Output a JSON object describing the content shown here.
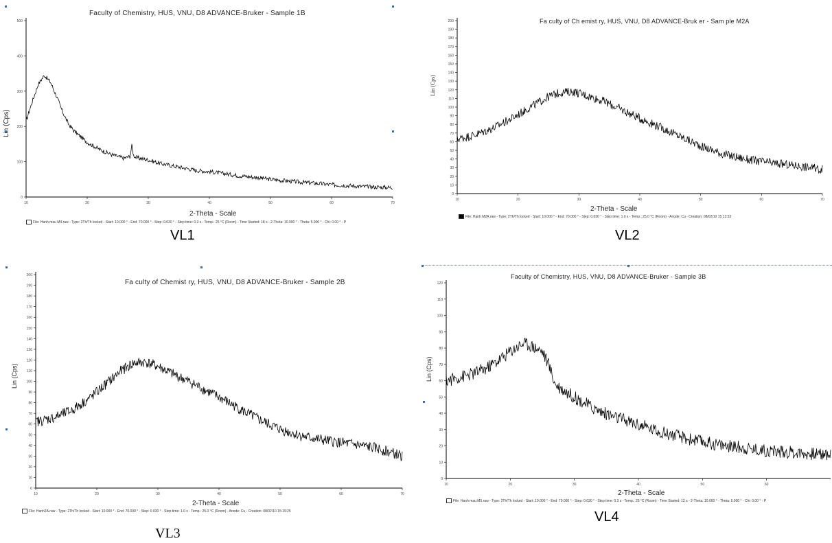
{
  "charts": [
    {
      "caption": "VL1",
      "title": "Faculty of Chemistry, HUS, VNU, D8 ADVANCE-Bruker - Sample  1B",
      "ylabel": "Lin (Cps)",
      "xlabel": "2-Theta - Scale",
      "footer": "File: Hanh mau M4.raw - Type: 2Th/Th locked - Start: 10.000 ° - End: 70.000 ° - Step: 0.030 ° - Step time: 0.3 s - Temp.: 25 °C (Room) - Time Started: 18 s - 2-Theta: 10.000 ° - Theta: 5.000 ° - Chi: 0.00 ° - P"
    },
    {
      "caption": "VL2",
      "title": "Fa culty of Ch emist ry, HUS, VNU, D8 ADVANCE-Bruk er - Sam ple M2A",
      "ylabel": "Lin (Cps)",
      "xlabel": "2-Theta - Scale",
      "footer": "File: Hanh M2A.raw - Type: 2Th/Th locked - Start: 10.000 ° - End: 70.000 ° - Step: 0.030 ° - Step time: 1.0 s - Temp.: 25.0 °C (Room) - Anode: Cu - Creation: 08/02/10 15:13:53"
    },
    {
      "caption": "VL3",
      "title": "Fa culty of Chemist ry, HUS, VNU, D8 ADVANCE-Bruker - Sample  2B",
      "ylabel": "Lin (Cps)",
      "xlabel": "2-Theta - Scale",
      "footer": "File: Hanh2A.raw - Type: 2Th/Th locked - Start: 10.000 ° - End: 70.000 ° - Step: 0.030 ° - Step time: 1.0 s - Temp.: 25.0 °C (Room) - Anode: Cu - Creation: 08/02/10 15:19:25"
    },
    {
      "caption": "VL4",
      "title": "Faculty of Chemistry, HUS, VNU, D8 ADVANCE-Bruker - Sample  3B",
      "ylabel": "Lin (Cps)",
      "xlabel": "2-Theta - Scale",
      "footer": "File: Hanh mau M5.raw - Type: 2Th/Th locked - Start: 10.000 ° - End: 70.000 ° - Step: 0.030 ° - Step time: 0.3 s - Temp.: 25 °C (Room) - Time Started: 12 s - 2-Theta: 10.000 ° - Theta: 5.000 ° - Chi: 0.00 ° - P"
    }
  ],
  "chart_data": [
    {
      "type": "line",
      "title": "Faculty of Chemistry, HUS, VNU, D8 ADVANCE-Bruker - Sample  1B",
      "xlabel": "2-Theta - Scale",
      "ylabel": "Lin (Cps)",
      "xlim": [
        10,
        70
      ],
      "ylim": [
        0,
        500
      ],
      "xticks": [
        10,
        20,
        30,
        40,
        50,
        60,
        70
      ],
      "yticks": [
        0,
        100,
        200,
        300,
        400,
        500
      ],
      "noise": 6,
      "color": "#000000",
      "x": [
        10,
        11,
        12,
        13,
        14,
        15,
        16,
        17,
        18,
        19,
        20,
        22,
        24,
        26,
        27,
        27.3,
        27.6,
        28,
        30,
        32,
        35,
        38,
        40,
        43,
        45,
        48,
        50,
        53,
        55,
        58,
        60,
        63,
        65,
        68,
        70
      ],
      "y": [
        215,
        270,
        320,
        345,
        325,
        285,
        240,
        205,
        185,
        170,
        155,
        135,
        120,
        110,
        115,
        145,
        118,
        112,
        105,
        95,
        85,
        75,
        72,
        65,
        60,
        55,
        50,
        45,
        42,
        38,
        35,
        32,
        30,
        28,
        27
      ]
    },
    {
      "type": "line",
      "title": "Fa culty of Ch emist ry, HUS, VNU, D8 ADVANCE-Bruk er - Sam ple M2A",
      "xlabel": "2-Theta - Scale",
      "ylabel": "Lin (Cps)",
      "xlim": [
        10,
        70
      ],
      "ylim": [
        0,
        200
      ],
      "xticks": [
        10,
        20,
        30,
        40,
        50,
        60,
        70
      ],
      "yticks": [
        0,
        10,
        20,
        30,
        40,
        50,
        60,
        70,
        80,
        90,
        100,
        110,
        120,
        130,
        140,
        150,
        160,
        170,
        180,
        190,
        200
      ],
      "noise": 5,
      "color": "#000000",
      "x": [
        10,
        13,
        16,
        19,
        22,
        25,
        27,
        29,
        31,
        34,
        37,
        40,
        43,
        46,
        50,
        54,
        58,
        62,
        66,
        70
      ],
      "y": [
        63,
        68,
        76,
        87,
        100,
        112,
        117,
        118,
        114,
        107,
        97,
        87,
        78,
        68,
        55,
        45,
        39,
        35,
        32,
        28
      ]
    },
    {
      "type": "line",
      "title": "Fa culty of Chemist ry, HUS, VNU, D8 ADVANCE-Bruker - Sample  2B",
      "xlabel": "2-Theta - Scale",
      "ylabel": "Lin (Cps)",
      "xlim": [
        10,
        70
      ],
      "ylim": [
        0,
        200
      ],
      "xticks": [
        10,
        20,
        30,
        40,
        50,
        60,
        70
      ],
      "yticks": [
        0,
        10,
        20,
        30,
        40,
        50,
        60,
        70,
        80,
        90,
        100,
        110,
        120,
        130,
        140,
        150,
        160,
        170,
        180,
        190,
        200
      ],
      "noise": 5,
      "color": "#000000",
      "x": [
        10,
        13,
        16,
        19,
        22,
        24,
        26,
        28,
        30,
        32,
        35,
        38,
        41,
        44,
        47,
        50,
        54,
        58,
        62,
        66,
        70
      ],
      "y": [
        62,
        66,
        73,
        85,
        100,
        110,
        117,
        118,
        114,
        108,
        100,
        91,
        82,
        72,
        63,
        55,
        48,
        44,
        41,
        37,
        30
      ]
    },
    {
      "type": "line",
      "title": "Faculty of Chemistry, HUS, VNU, D8 ADVANCE-Bruker - Sample  3B",
      "xlabel": "2-Theta - Scale",
      "ylabel": "Lin (Cps)",
      "xlim": [
        10,
        70
      ],
      "ylim": [
        0,
        120
      ],
      "xticks": [
        10,
        20,
        30,
        40,
        50,
        60
      ],
      "yticks": [
        0,
        10,
        20,
        30,
        40,
        50,
        60,
        70,
        80,
        90,
        100,
        110,
        120
      ],
      "noise": 4,
      "color": "#000000",
      "x": [
        10,
        12,
        14,
        16,
        18,
        20,
        22,
        23,
        25,
        26,
        27,
        28,
        30,
        33,
        36,
        40,
        44,
        48,
        52,
        56,
        60,
        64,
        68,
        70
      ],
      "y": [
        60,
        62,
        64,
        67,
        72,
        78,
        83,
        82,
        78,
        70,
        58,
        55,
        50,
        43,
        38,
        33,
        28,
        24,
        21,
        19,
        17,
        16,
        15,
        15
      ]
    }
  ]
}
